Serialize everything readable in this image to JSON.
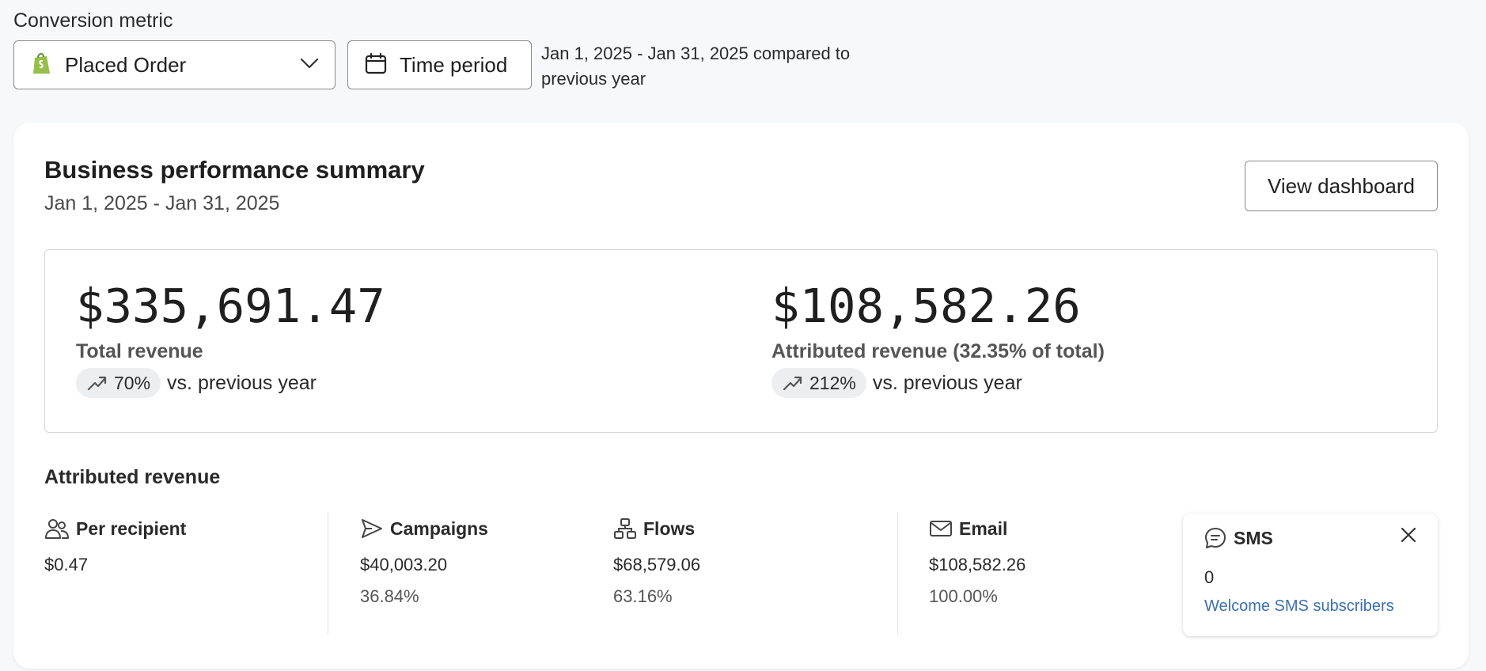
{
  "header": {
    "metric_label": "Conversion metric",
    "metric_select": {
      "value": "Placed Order",
      "icon": "shopify-icon"
    },
    "time_button_label": "Time period",
    "range_text": "Jan 1, 2025 - Jan 31, 2025 compared to previous year"
  },
  "summary": {
    "title": "Business performance summary",
    "subtitle": "Jan 1, 2025 - Jan 31, 2025",
    "view_dashboard_label": "View dashboard",
    "total": {
      "value": "$335,691.47",
      "label": "Total revenue",
      "change": "70%",
      "vs": "vs. previous year"
    },
    "attributed": {
      "value": "$108,582.26",
      "label": "Attributed revenue (32.35% of total)",
      "change": "212%",
      "vs": "vs. previous year"
    }
  },
  "attributed_section": {
    "title": "Attributed revenue",
    "per_recipient": {
      "label": "Per recipient",
      "value": "$0.47"
    },
    "campaigns": {
      "label": "Campaigns",
      "value": "$40,003.20",
      "percent": "36.84%"
    },
    "flows": {
      "label": "Flows",
      "value": "$68,579.06",
      "percent": "63.16%"
    },
    "email": {
      "label": "Email",
      "value": "$108,582.26",
      "percent": "100.00%"
    },
    "sms": {
      "label": "SMS",
      "value": "0",
      "link": "Welcome SMS subscribers"
    }
  },
  "colors": {
    "link": "#3c6fb0",
    "shopify_green": "#95bf47",
    "pill_bg": "#eceeef"
  }
}
